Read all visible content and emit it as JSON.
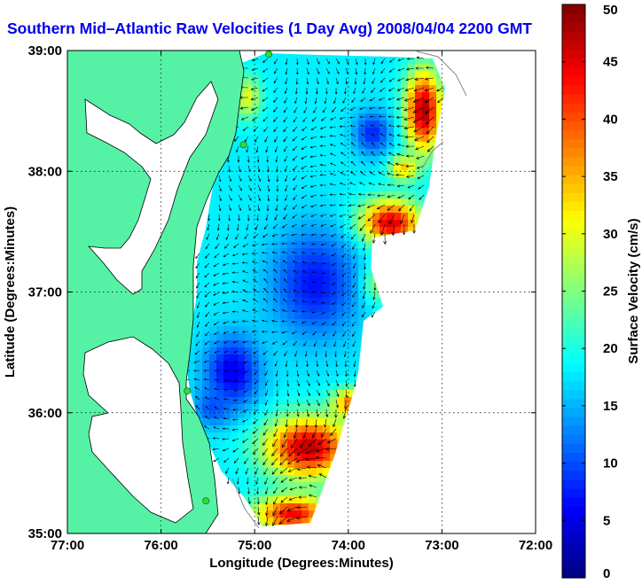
{
  "title": "Southern Mid–Atlantic Raw Velocities (1 Day Avg) 2008/04/04 2200 GMT",
  "x_axis": {
    "label": "Longitude (Degrees:Minutes)",
    "ticks": [
      {
        "value": -77,
        "label": "77:00"
      },
      {
        "value": -76,
        "label": "76:00"
      },
      {
        "value": -75,
        "label": "75:00"
      },
      {
        "value": -74,
        "label": "74:00"
      },
      {
        "value": -73,
        "label": "73:00"
      },
      {
        "value": -72,
        "label": "72:00"
      }
    ],
    "range": [
      -77,
      -72
    ]
  },
  "y_axis": {
    "label": "Latitude (Degrees:Minutes)",
    "ticks": [
      {
        "value": 35,
        "label": "35:00"
      },
      {
        "value": 36,
        "label": "36:00"
      },
      {
        "value": 37,
        "label": "37:00"
      },
      {
        "value": 38,
        "label": "38:00"
      },
      {
        "value": 39,
        "label": "39:00"
      }
    ],
    "range": [
      35,
      39
    ]
  },
  "grid": "dotted",
  "colorbar": {
    "label": "Surface Velocity (cm/s)",
    "range": [
      0,
      50
    ],
    "units": "cm/s",
    "ticks": [
      {
        "value": 0,
        "label": "0"
      },
      {
        "value": 5,
        "label": "5"
      },
      {
        "value": 10,
        "label": "10"
      },
      {
        "value": 15,
        "label": "15"
      },
      {
        "value": 20,
        "label": "20"
      },
      {
        "value": 25,
        "label": "25"
      },
      {
        "value": 30,
        "label": "30"
      },
      {
        "value": 35,
        "label": "35"
      },
      {
        "value": 40,
        "label": "40"
      },
      {
        "value": 45,
        "label": "45"
      },
      {
        "value": 50,
        "label": "50"
      }
    ],
    "colormap": "jet"
  },
  "colors": {
    "land": "#55f2a5",
    "title": "#0000ee",
    "station": "#33dd33"
  },
  "stations": [
    {
      "lon": -74.85,
      "lat": 38.97
    },
    {
      "lon": -75.12,
      "lat": 38.22
    },
    {
      "lon": -75.72,
      "lat": 36.18
    },
    {
      "lon": -75.52,
      "lat": 35.27
    }
  ]
}
